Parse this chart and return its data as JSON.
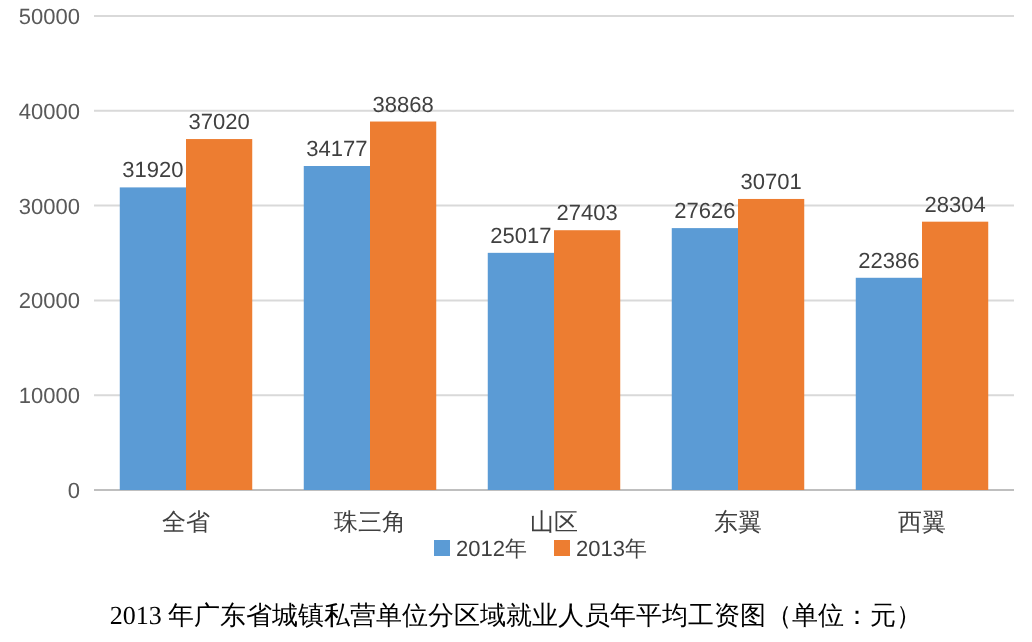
{
  "chart_data": {
    "type": "bar",
    "title": "2013 年广东省城镇私营单位分区域就业人员年平均工资图（单位：元）",
    "categories": [
      "全省",
      "珠三角",
      "山区",
      "东翼",
      "西翼"
    ],
    "series": [
      {
        "name": "2012年",
        "color": "#5b9bd5",
        "values": [
          31920,
          34177,
          25017,
          27626,
          22386
        ]
      },
      {
        "name": "2013年",
        "color": "#ed7d31",
        "values": [
          37020,
          38868,
          27403,
          30701,
          28304
        ]
      }
    ],
    "ylim": [
      0,
      50000
    ],
    "yticks": [
      0,
      10000,
      20000,
      30000,
      40000,
      50000
    ],
    "grid": "y",
    "legend": "bottom",
    "data_labels": true
  }
}
